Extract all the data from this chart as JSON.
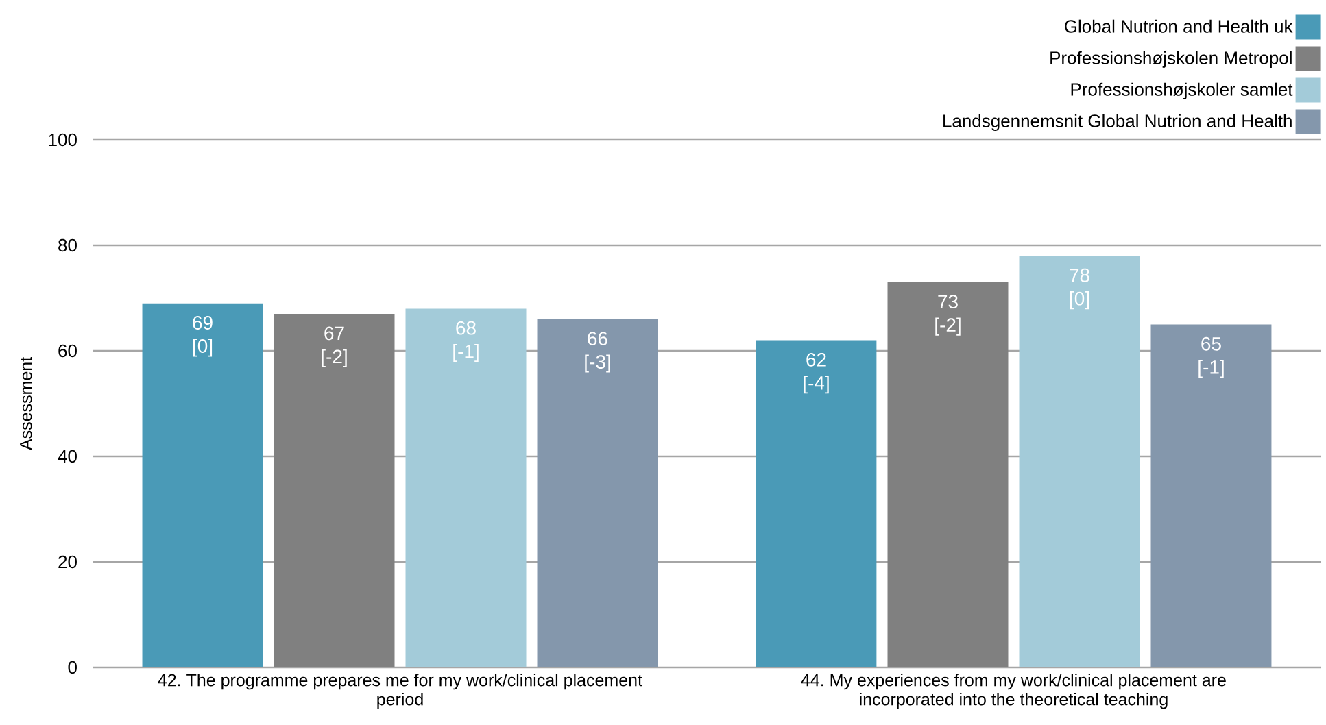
{
  "chart_data": {
    "type": "bar",
    "ylabel": "Assessment",
    "categories": [
      "42. The programme prepares me for my work/clinical placement period",
      "44. My experiences from my work/clinical placement are incorporated into the theoretical teaching"
    ],
    "series": [
      {
        "name": "Global Nutrion and Health uk",
        "color": "#4a9ab7",
        "values": [
          69,
          62
        ],
        "value_labels": [
          "69 [0]",
          "62 [-4]"
        ]
      },
      {
        "name": "Professionshøjskolen Metropol",
        "color": "#808080",
        "values": [
          67,
          73
        ],
        "value_labels": [
          "67 [-2]",
          "73 [-2]"
        ]
      },
      {
        "name": "Professionshøjskoler samlet",
        "color": "#a3cbd9",
        "values": [
          68,
          78
        ],
        "value_labels": [
          "68 [-1]",
          "78 [0]"
        ]
      },
      {
        "name": "Landsgennemsnit Global Nutrion and Health",
        "color": "#8497ac",
        "values": [
          66,
          65
        ],
        "value_labels": [
          "66 [-3]",
          "65 [-1]"
        ]
      }
    ],
    "ylim": [
      0,
      100
    ],
    "yticks": [
      0,
      20,
      40,
      60,
      80,
      100
    ],
    "grid": "y",
    "legend": "top right"
  }
}
